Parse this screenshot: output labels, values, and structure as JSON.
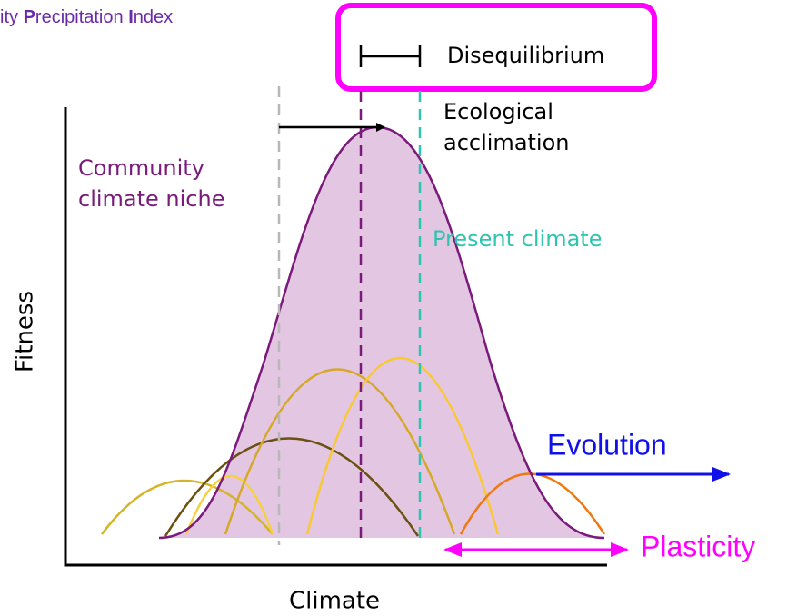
{
  "header": {
    "title_parts": [
      "ity ",
      "P",
      "recipitation ",
      "I",
      "ndex"
    ]
  },
  "legend": {
    "disequilibrium": "Disequilibrium"
  },
  "labels": {
    "ecological_acclimation": [
      "Ecological",
      "acclimation"
    ],
    "community_climate_niche": [
      "Community",
      "climate niche"
    ],
    "present_climate": "Present climate",
    "evolution": "Evolution",
    "plasticity": "Plasticity"
  },
  "axes": {
    "y": "Fitness",
    "x": "Climate"
  }
}
